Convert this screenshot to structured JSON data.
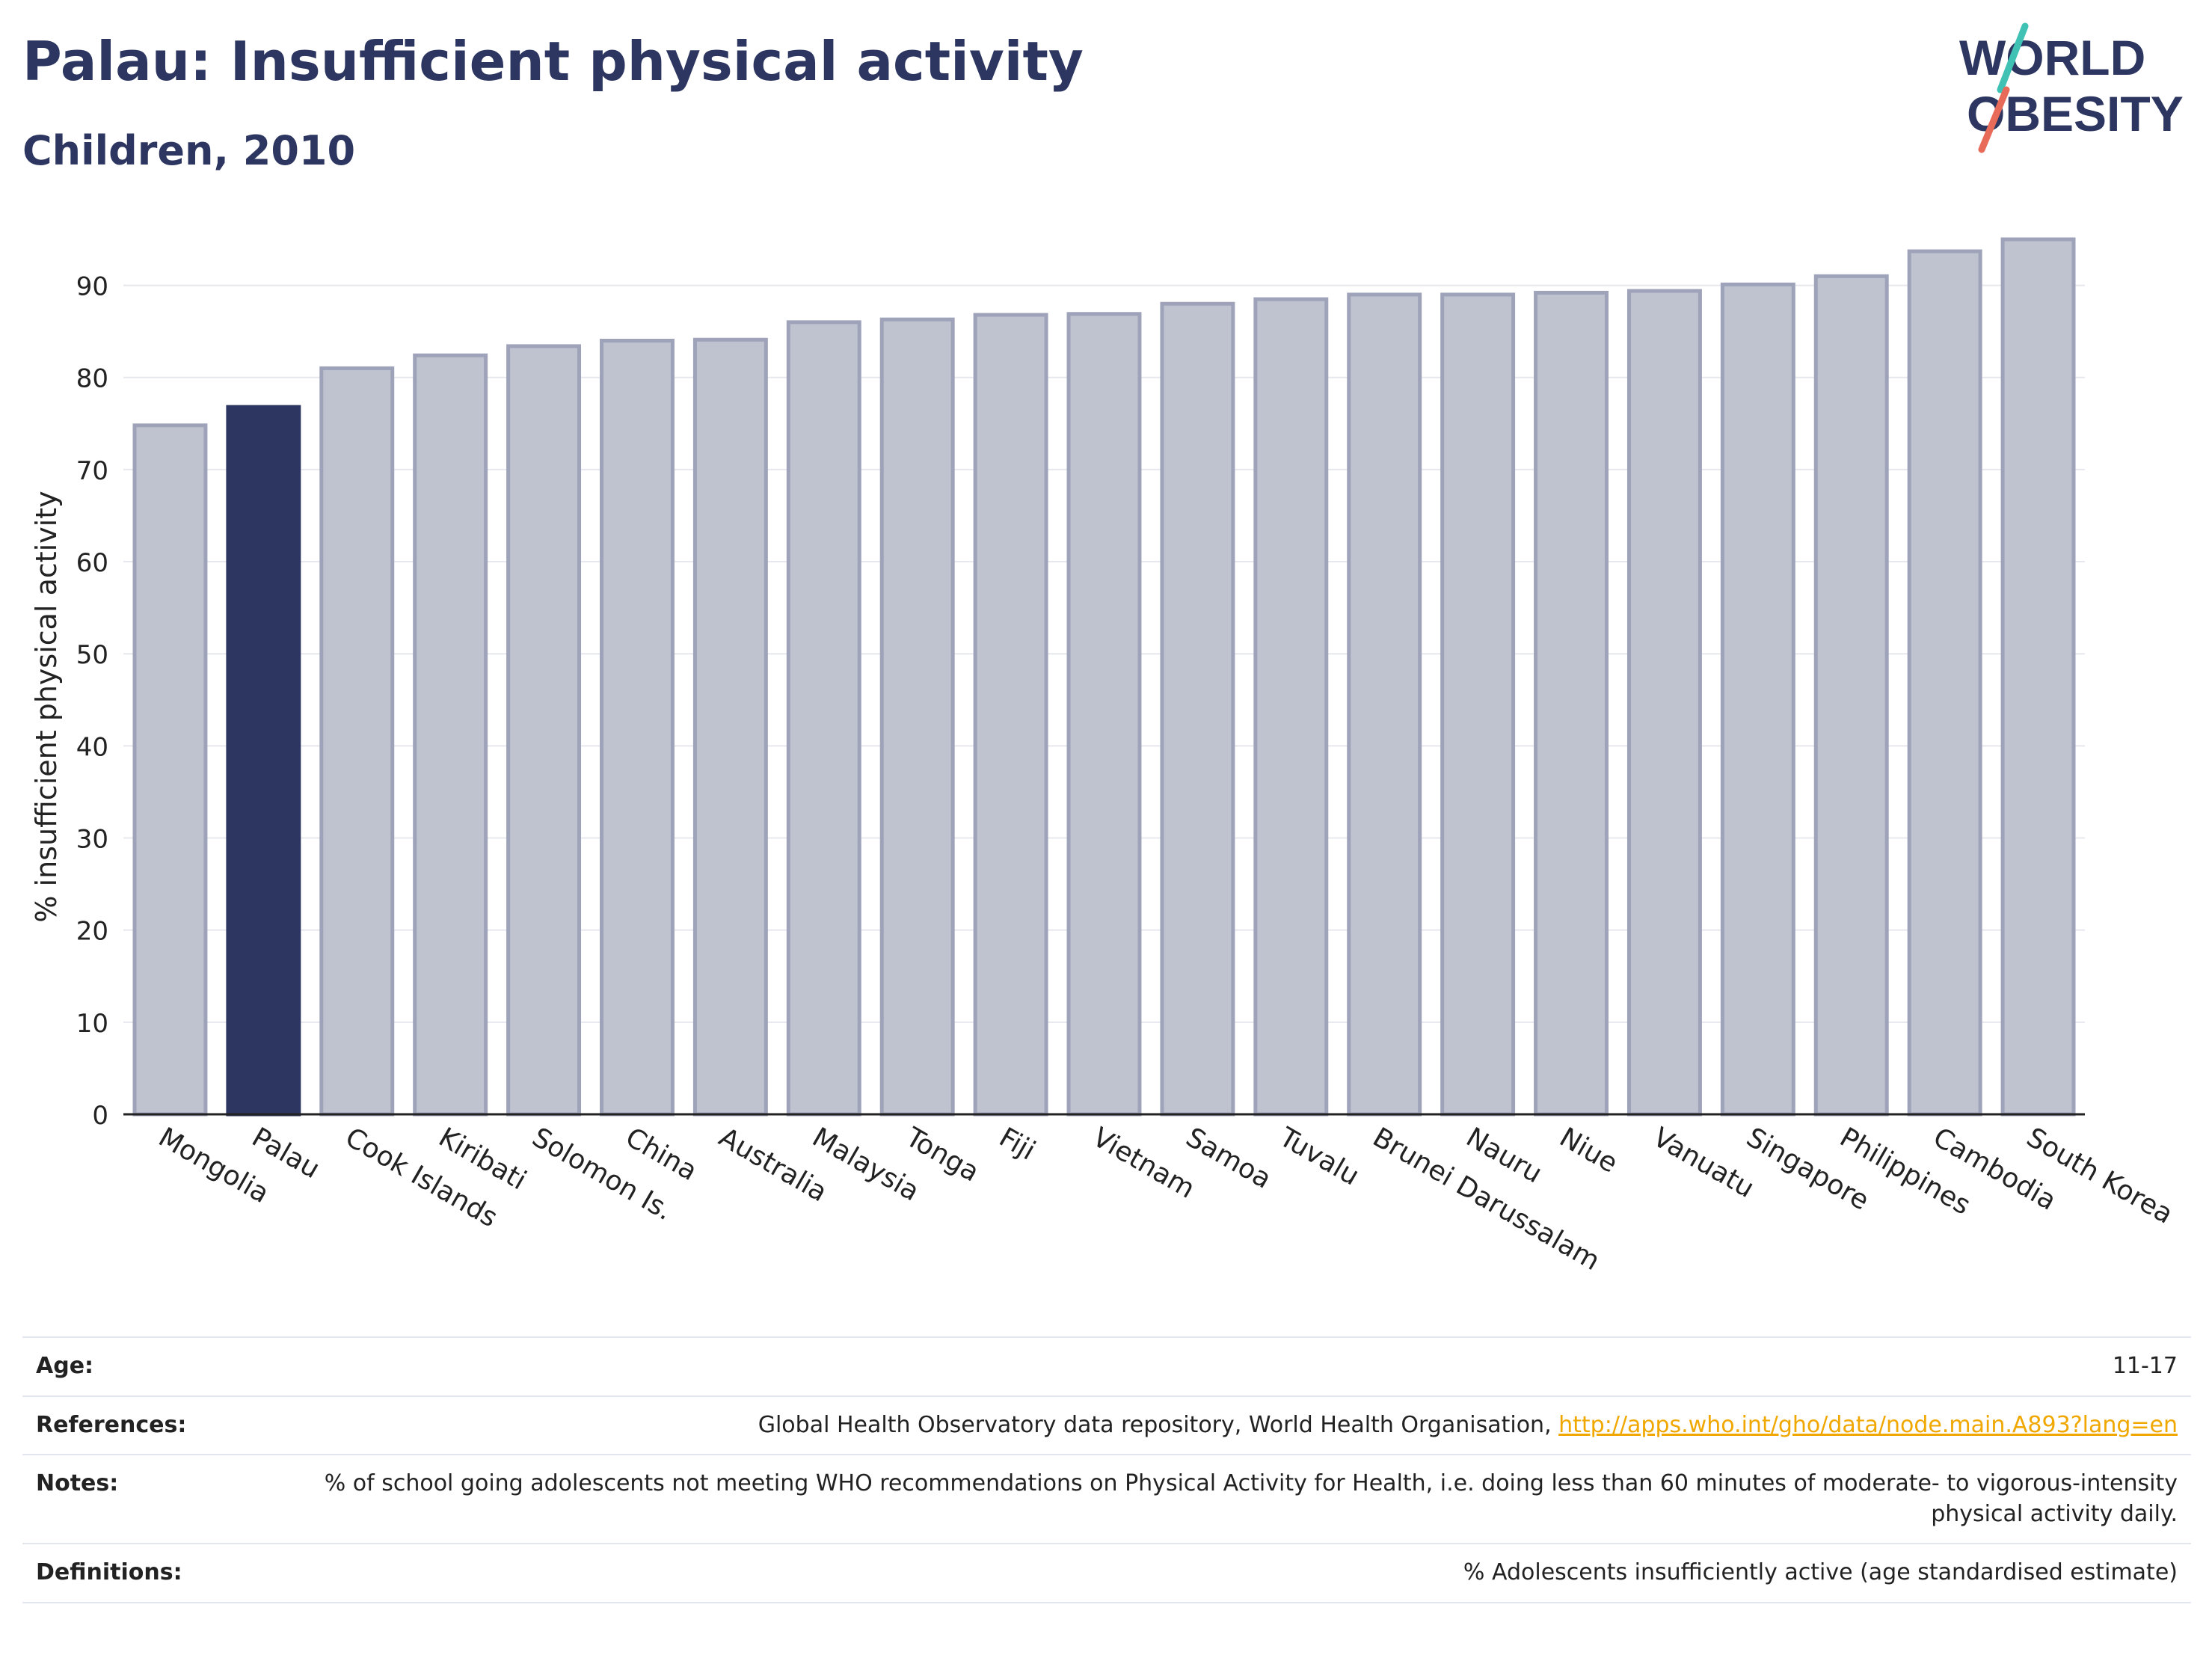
{
  "header": {
    "title": "Palau: Insufficient physical activity",
    "subtitle": "Children, 2010"
  },
  "logo": {
    "line1": "WORLD",
    "line2": "OBESITY",
    "accent_teal": "#3fc1b3",
    "accent_coral": "#e86b5a",
    "color": "#2c3660"
  },
  "colors": {
    "highlight_bar": "#2c3660",
    "other_bar_fill": "#bfc2cf",
    "other_bar_stroke": "#9ea3ba",
    "grid": "#e6e8ee",
    "axis": "#222222",
    "link": "#f0a800"
  },
  "chart_data": {
    "type": "bar",
    "ylabel": "% insufficient physical activity",
    "ylim": [
      0,
      95
    ],
    "yticks": [
      0,
      10,
      20,
      30,
      40,
      50,
      60,
      70,
      80,
      90
    ],
    "highlight": "Palau",
    "grid": true,
    "categories": [
      "Mongolia",
      "Palau",
      "Cook Islands",
      "Kiribati",
      "Solomon Is.",
      "China",
      "Australia",
      "Malaysia",
      "Tonga",
      "Fiji",
      "Vietnam",
      "Samoa",
      "Tuvalu",
      "Brunei Darussalam",
      "Nauru",
      "Niue",
      "Vanuatu",
      "Singapore",
      "Philippines",
      "Cambodia",
      "South Korea"
    ],
    "values": [
      74.8,
      76.8,
      81.0,
      82.4,
      83.4,
      84.0,
      84.1,
      86.0,
      86.3,
      86.8,
      86.9,
      88.0,
      88.5,
      89.0,
      89.0,
      89.2,
      89.4,
      90.1,
      91.0,
      93.7,
      95.0
    ]
  },
  "info": {
    "age_label": "Age:",
    "age_value": "11-17",
    "references_label": "References:",
    "references_text": "Global Health Observatory data repository, World Health Organisation, ",
    "references_link": "http://apps.who.int/gho/data/node.main.A893?lang=en",
    "notes_label": "Notes:",
    "notes_value": "% of school going adolescents not meeting WHO recommendations on Physical Activity for Health, i.e. doing less than 60 minutes of moderate- to vigorous-intensity physical activity daily.",
    "definitions_label": "Definitions:",
    "definitions_value": "% Adolescents insufficiently active (age standardised estimate)"
  }
}
